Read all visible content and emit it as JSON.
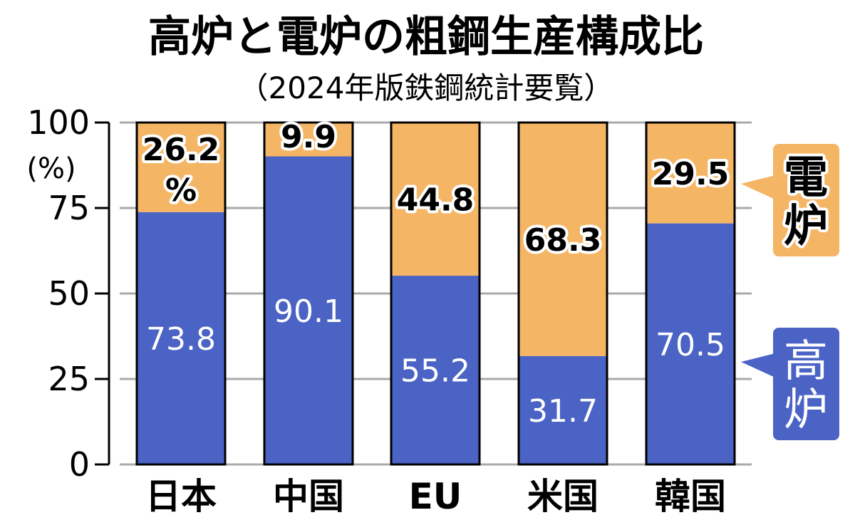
{
  "chart_data": {
    "type": "bar",
    "stacked": true,
    "title": "高炉と電炉の粗鋼生産構成比",
    "subtitle": "（2024年版鉄鋼統計要覧）",
    "ylabel": "(%)",
    "ylim": [
      0,
      100
    ],
    "yticks": [
      "0",
      "25",
      "50",
      "75",
      "100"
    ],
    "grid": true,
    "legend_placement": "right",
    "categories": [
      "日本",
      "中国",
      "EU",
      "米国",
      "韓国"
    ],
    "series": [
      {
        "name": "高炉",
        "color": "#4A63C4",
        "values": [
          73.8,
          90.1,
          55.2,
          31.7,
          70.5
        ],
        "labels": [
          "73.8",
          "90.1",
          "55.2",
          "31.7",
          "70.5"
        ]
      },
      {
        "name": "電炉",
        "color": "#F4B565",
        "values": [
          26.2,
          9.9,
          44.8,
          68.3,
          29.5
        ],
        "labels": [
          "26.2",
          "9.9",
          "44.8",
          "68.3",
          "29.5"
        ]
      }
    ],
    "first_label_unit": "%"
  }
}
